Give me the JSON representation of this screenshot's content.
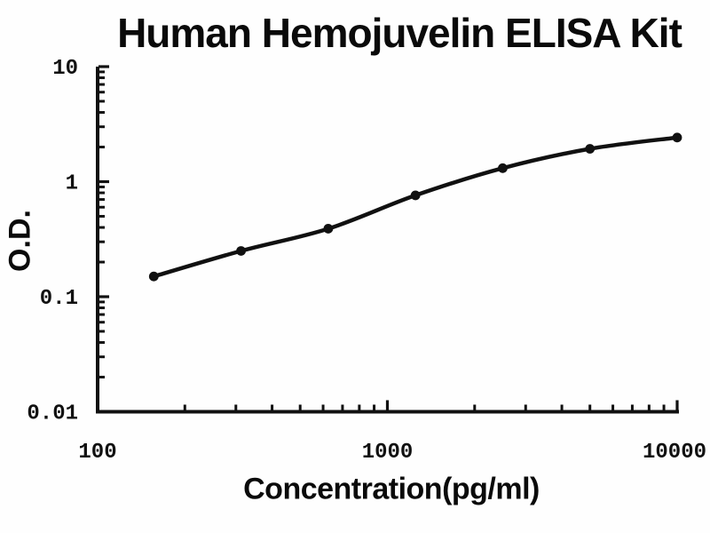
{
  "title": "Human Hemojuvelin ELISA Kit",
  "chart_data": {
    "type": "line",
    "title": "Human Hemojuvelin ELISA Kit",
    "xlabel": "Concentration(pg/ml)",
    "ylabel": "O.D.",
    "x_scale": "log",
    "y_scale": "log",
    "xlim": [
      100,
      10000
    ],
    "ylim": [
      0.01,
      10
    ],
    "grid": false,
    "legend": "none",
    "series_name": "standard-curve",
    "x": [
      156.25,
      312.5,
      625,
      1250,
      2500,
      5000,
      10000
    ],
    "y": [
      0.15,
      0.25,
      0.39,
      0.76,
      1.31,
      1.93,
      2.42
    ],
    "x_tick_values": [
      100,
      1000,
      10000
    ],
    "x_tick_labels": [
      "100",
      "1000",
      "10000"
    ],
    "y_tick_values": [
      10,
      1,
      0.1,
      0.01
    ],
    "y_tick_labels": [
      "10",
      "1",
      "0.1",
      "0.01"
    ],
    "marker": "filled-circle",
    "line_color": "#111111",
    "marker_color": "#111111"
  },
  "colors": {
    "background": "#fefefe",
    "text": "#0a0a0a",
    "axis": "#111111"
  }
}
